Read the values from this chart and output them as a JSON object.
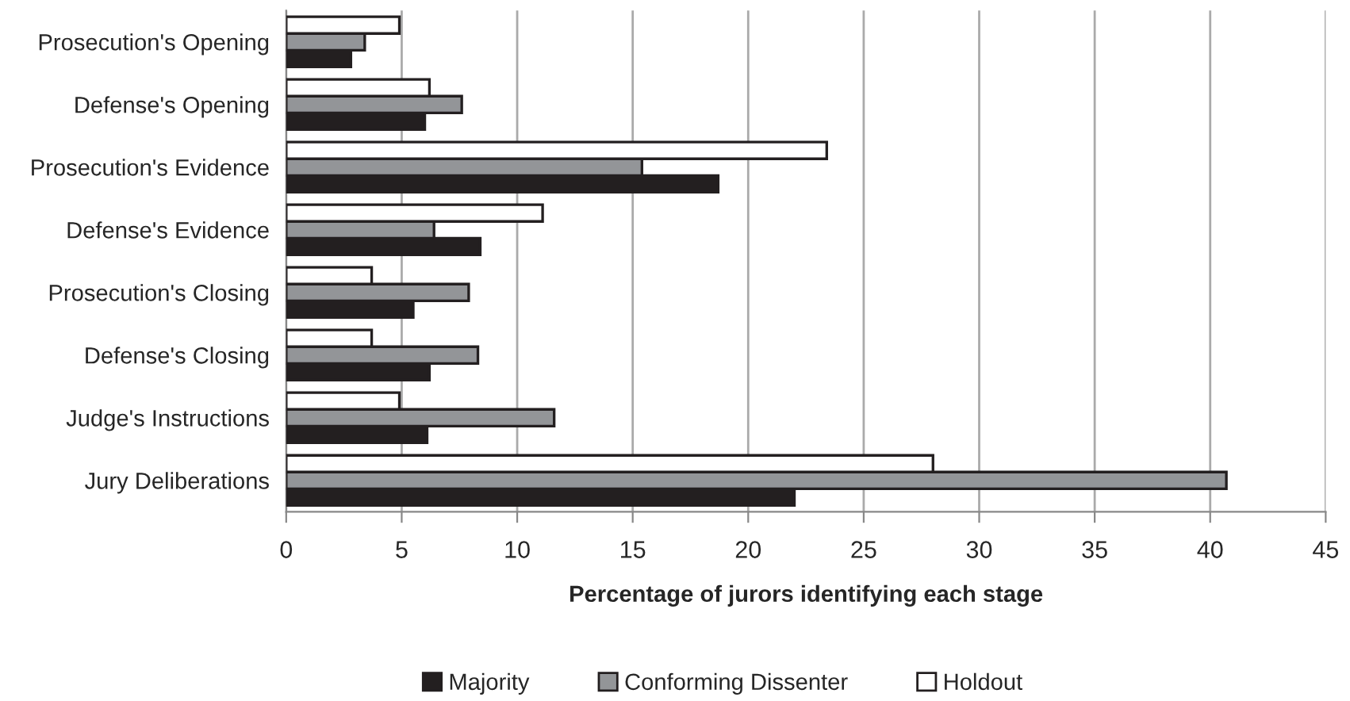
{
  "chart_data": {
    "type": "bar",
    "orientation": "horizontal",
    "categories": [
      "Prosecution's Opening",
      "Defense's Opening",
      "Prosecution's Evidence",
      "Defense's Evidence",
      "Prosecution's Closing",
      "Defense's Closing",
      "Judge's Instructions",
      "Jury Deliberations"
    ],
    "series": [
      {
        "name": "Majority",
        "color": "#231f20",
        "values": [
          2.8,
          6.0,
          18.7,
          8.4,
          5.5,
          6.2,
          6.1,
          22.0
        ]
      },
      {
        "name": "Conforming Dissenter",
        "color": "#939598",
        "values": [
          3.4,
          7.6,
          15.4,
          6.4,
          7.9,
          8.3,
          11.6,
          40.7
        ]
      },
      {
        "name": "Holdout",
        "color": "#ffffff",
        "values": [
          4.9,
          6.2,
          23.4,
          11.1,
          3.7,
          3.7,
          4.9,
          28.0
        ]
      }
    ],
    "xlabel": "Percentage of jurors identifying each stage",
    "xlim": [
      0,
      45
    ],
    "xticks": [
      0,
      5,
      10,
      15,
      20,
      25,
      30,
      35,
      40,
      45
    ],
    "grid": "x",
    "legend": "bottom"
  }
}
